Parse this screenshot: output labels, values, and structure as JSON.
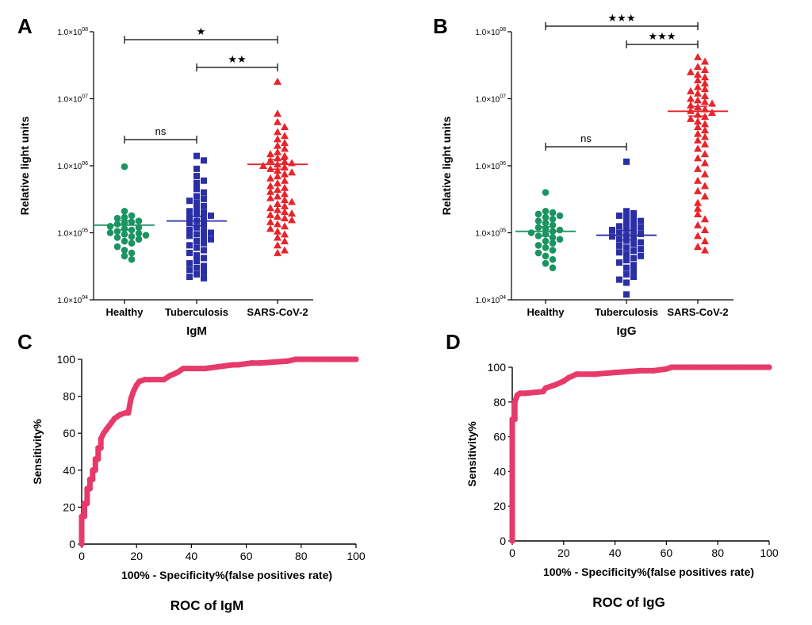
{
  "colors": {
    "healthy": "#1a9460",
    "tuberculosis": "#2a2fa6",
    "sars": "#e8242a",
    "roc": "#e63a6a",
    "axis": "#000000"
  },
  "panels": {
    "A": {
      "letter": "A",
      "ylabel": "Relative light units",
      "xlabel": "IgM",
      "y_ticks": [
        {
          "base": "1.0×10",
          "exp": "04"
        },
        {
          "base": "1.0×10",
          "exp": "05"
        },
        {
          "base": "1.0×10",
          "exp": "06"
        },
        {
          "base": "1.0×10",
          "exp": "07"
        },
        {
          "base": "1.0×10",
          "exp": "08"
        }
      ],
      "groups": [
        "Healthy",
        "Tuberculosis",
        "SARS-CoV-2"
      ],
      "sig": [
        {
          "label": "ns",
          "from": 0,
          "to": 1
        },
        {
          "label": "★★",
          "from": 1,
          "to": 2
        },
        {
          "label": "★",
          "from": 0,
          "to": 2
        }
      ]
    },
    "B": {
      "letter": "B",
      "ylabel": "Relative light units",
      "xlabel": "IgG",
      "y_ticks": [
        {
          "base": "1.0×10",
          "exp": "04"
        },
        {
          "base": "1.0×10",
          "exp": "05"
        },
        {
          "base": "1.0×10",
          "exp": "06"
        },
        {
          "base": "1.0×10",
          "exp": "07"
        },
        {
          "base": "1.0×10",
          "exp": "08"
        }
      ],
      "groups": [
        "Healthy",
        "Tuberculosis",
        "SARS-CoV-2"
      ],
      "sig": [
        {
          "label": "ns",
          "from": 0,
          "to": 1
        },
        {
          "label": "★★★",
          "from": 1,
          "to": 2
        },
        {
          "label": "★★★",
          "from": 0,
          "to": 2
        }
      ]
    },
    "C": {
      "letter": "C",
      "ylabel": "Sensitivity%",
      "xlabel": "100% - Specificity%(false positives rate)",
      "caption": "ROC of IgM",
      "x_ticks": [
        "0",
        "20",
        "40",
        "60",
        "80",
        "100"
      ],
      "y_ticks": [
        "0",
        "20",
        "40",
        "60",
        "80",
        "100"
      ]
    },
    "D": {
      "letter": "D",
      "ylabel": "Sensitivity%",
      "xlabel": "100% - Specificity%(false positives rate)",
      "caption": "ROC of IgG",
      "x_ticks": [
        "0",
        "20",
        "40",
        "60",
        "80",
        "100"
      ],
      "y_ticks": [
        "0",
        "20",
        "40",
        "60",
        "80",
        "100"
      ]
    }
  },
  "chart_data": [
    {
      "type": "scatter",
      "panel": "A",
      "scale": "log",
      "ylim": [
        10000,
        100000000
      ],
      "categories": [
        "Healthy",
        "Tuberculosis",
        "SARS-CoV-2"
      ],
      "series": [
        {
          "category": "Healthy",
          "marker": "circle",
          "mean": 130000,
          "values": [
            970000,
            210000,
            180000,
            170000,
            165000,
            150000,
            145000,
            140000,
            135000,
            125000,
            120000,
            115000,
            110000,
            105000,
            100000,
            98000,
            95000,
            92000,
            88000,
            85000,
            80000,
            75000,
            70000,
            62000,
            55000,
            50000,
            45000,
            40000
          ]
        },
        {
          "category": "Tuberculosis",
          "marker": "square",
          "mean": 150000,
          "values": [
            1400000,
            1200000,
            900000,
            700000,
            600000,
            550000,
            450000,
            400000,
            350000,
            320000,
            300000,
            280000,
            250000,
            230000,
            210000,
            200000,
            190000,
            180000,
            170000,
            160000,
            150000,
            140000,
            130000,
            120000,
            110000,
            105000,
            100000,
            95000,
            90000,
            85000,
            80000,
            75000,
            70000,
            65000,
            60000,
            55000,
            50000,
            46000,
            42000,
            38000,
            35000,
            32000,
            30000,
            28000,
            26000,
            24000,
            22000,
            21000
          ]
        },
        {
          "category": "SARS-CoV-2",
          "marker": "triangle",
          "mean": 1050000,
          "values": [
            18000000,
            6000000,
            4500000,
            3800000,
            3200000,
            2800000,
            2500000,
            2200000,
            2000000,
            1800000,
            1600000,
            1500000,
            1400000,
            1300000,
            1200000,
            1150000,
            1100000,
            1050000,
            1000000,
            950000,
            900000,
            850000,
            800000,
            750000,
            700000,
            650000,
            600000,
            550000,
            500000,
            470000,
            440000,
            410000,
            380000,
            350000,
            330000,
            310000,
            290000,
            270000,
            250000,
            235000,
            220000,
            205000,
            195000,
            185000,
            175000,
            165000,
            155000,
            145000,
            135000,
            125000,
            115000,
            105000,
            95000,
            85000,
            75000,
            65000,
            55000,
            50000
          ]
        }
      ]
    },
    {
      "type": "scatter",
      "panel": "B",
      "scale": "log",
      "ylim": [
        10000,
        100000000
      ],
      "categories": [
        "Healthy",
        "Tuberculosis",
        "SARS-CoV-2"
      ],
      "series": [
        {
          "category": "Healthy",
          "marker": "circle",
          "mean": 105000,
          "values": [
            400000,
            210000,
            200000,
            190000,
            180000,
            170000,
            160000,
            150000,
            140000,
            130000,
            120000,
            115000,
            110000,
            105000,
            100000,
            95000,
            90000,
            85000,
            80000,
            75000,
            70000,
            65000,
            60000,
            55000,
            50000,
            45000,
            40000,
            35000,
            30000
          ]
        },
        {
          "category": "Tuberculosis",
          "marker": "square",
          "mean": 92000,
          "values": [
            1150000,
            210000,
            195000,
            180000,
            170000,
            160000,
            150000,
            140000,
            130000,
            125000,
            120000,
            115000,
            110000,
            105000,
            100000,
            96000,
            92000,
            88000,
            84000,
            80000,
            76000,
            72000,
            68000,
            64000,
            60000,
            57000,
            54000,
            51000,
            48000,
            45000,
            42000,
            39000,
            36000,
            33000,
            30000,
            27000,
            24000,
            22000,
            20000,
            18000,
            12000
          ]
        },
        {
          "category": "SARS-CoV-2",
          "marker": "triangle",
          "mean": 6500000,
          "values": [
            42000000,
            36000000,
            30000000,
            27000000,
            25000000,
            23000000,
            21000000,
            19000000,
            17000000,
            15000000,
            14000000,
            13000000,
            12000000,
            11000000,
            10000000,
            9500000,
            9000000,
            8500000,
            8000000,
            7500000,
            7000000,
            6600000,
            6200000,
            5800000,
            5400000,
            5000000,
            4600000,
            4200000,
            3800000,
            3400000,
            3000000,
            2700000,
            2400000,
            2100000,
            1800000,
            1500000,
            1300000,
            1100000,
            900000,
            750000,
            600000,
            500000,
            420000,
            350000,
            280000,
            230000,
            190000,
            160000,
            130000,
            110000,
            90000,
            75000,
            62000,
            55000
          ]
        }
      ]
    },
    {
      "type": "line",
      "panel": "C",
      "xlim": [
        0,
        100
      ],
      "ylim": [
        0,
        100
      ],
      "x": [
        0,
        0,
        1,
        1,
        2,
        2,
        3,
        3,
        4,
        4,
        5,
        5,
        6,
        6,
        7,
        7,
        8,
        9,
        10,
        11,
        12,
        14,
        16,
        17,
        18,
        19,
        20,
        21,
        23,
        30,
        32,
        35,
        37,
        45,
        50,
        55,
        57,
        62,
        65,
        75,
        78,
        80,
        86,
        90,
        95,
        100
      ],
      "y": [
        0,
        15,
        15,
        22,
        22,
        30,
        30,
        35,
        35,
        40,
        40,
        46,
        46,
        52,
        52,
        57,
        60,
        62,
        64,
        66,
        68,
        70,
        71,
        71,
        79,
        83,
        86,
        88,
        89,
        89,
        91,
        93,
        95,
        95,
        96,
        97,
        97,
        98,
        98,
        99,
        100,
        100,
        100,
        100,
        100,
        100
      ]
    },
    {
      "type": "line",
      "panel": "D",
      "xlim": [
        0,
        100
      ],
      "ylim": [
        0,
        100
      ],
      "x": [
        0,
        0,
        1,
        1,
        2,
        3,
        5,
        12,
        13,
        15,
        17,
        20,
        22,
        25,
        32,
        40,
        50,
        55,
        60,
        62,
        70,
        80,
        90,
        100
      ],
      "y": [
        0,
        70,
        70,
        80,
        84,
        85,
        85,
        86,
        88,
        89,
        90,
        92,
        94,
        96,
        96,
        97,
        98,
        98,
        99,
        100,
        100,
        100,
        100,
        100
      ]
    }
  ]
}
